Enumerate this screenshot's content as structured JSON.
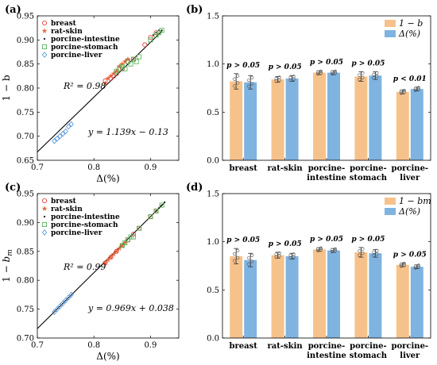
{
  "colors": {
    "breast": "#e03030",
    "rat_skin": "#e8663a",
    "porcine_intestine": "#111111",
    "porcine_stomach": "#4caf50",
    "porcine_liver": "#4a90d9",
    "bar_orange": "#f6c28b",
    "bar_blue": "#7fb3e0",
    "fit_line": "#000000",
    "errorbar": "#333333",
    "point_edge": "#555555"
  },
  "chart_data": [
    {
      "id": "a",
      "type": "scatter",
      "panel_letter": "(a)",
      "xlabel": "Δ(%)",
      "ylabel": "1 − b",
      "ylabel_symbol": "b",
      "xlim": [
        0.7,
        0.95
      ],
      "ylim": [
        0.65,
        0.95
      ],
      "xticks": [
        0.7,
        0.8,
        0.9
      ],
      "yticks": [
        0.65,
        0.7,
        0.75,
        0.8,
        0.85,
        0.9,
        0.95
      ],
      "xtick_labels": [
        "0.7",
        "0.8",
        "0.9"
      ],
      "ytick_labels": [
        "0.65",
        "0.70",
        "0.75",
        "0.80",
        "0.85",
        "0.90",
        "0.95"
      ],
      "legend_position": "top-left",
      "r2_text": "R² = 0.98",
      "r2_value": 0.98,
      "eq_text": "y = 1.139x − 0.13",
      "fit": {
        "slope": 1.139,
        "intercept": -0.13,
        "x_range": [
          0.68,
          0.92
        ]
      },
      "series": [
        {
          "name": "breast",
          "marker": "circle",
          "color_key": "breast",
          "points": [
            [
              0.82,
              0.815
            ],
            [
              0.83,
              0.82
            ],
            [
              0.835,
              0.825
            ],
            [
              0.84,
              0.83
            ],
            [
              0.85,
              0.84
            ],
            [
              0.86,
              0.855
            ],
            [
              0.87,
              0.86
            ],
            [
              0.89,
              0.89
            ],
            [
              0.9,
              0.905
            ],
            [
              0.91,
              0.915
            ]
          ]
        },
        {
          "name": "rat-skin",
          "marker": "star",
          "color_key": "rat_skin",
          "points": [
            [
              0.82,
              0.81
            ],
            [
              0.825,
              0.82
            ],
            [
              0.83,
              0.825
            ],
            [
              0.835,
              0.83
            ],
            [
              0.84,
              0.835
            ],
            [
              0.845,
              0.845
            ],
            [
              0.85,
              0.85
            ],
            [
              0.855,
              0.855
            ],
            [
              0.86,
              0.86
            ]
          ]
        },
        {
          "name": "porcine-intestine",
          "marker": "dot",
          "color_key": "porcine_intestine",
          "points": [
            [
              0.905,
              0.91
            ],
            [
              0.91,
              0.915
            ],
            [
              0.915,
              0.92
            ],
            [
              0.92,
              0.92
            ],
            [
              0.918,
              0.916
            ]
          ]
        },
        {
          "name": "porcine-stomach",
          "marker": "square",
          "color_key": "porcine_stomach",
          "points": [
            [
              0.84,
              0.835
            ],
            [
              0.845,
              0.84
            ],
            [
              0.85,
              0.845
            ],
            [
              0.855,
              0.84
            ],
            [
              0.86,
              0.855
            ],
            [
              0.865,
              0.85
            ],
            [
              0.87,
              0.86
            ],
            [
              0.875,
              0.855
            ],
            [
              0.88,
              0.865
            ],
            [
              0.9,
              0.9
            ],
            [
              0.91,
              0.91
            ],
            [
              0.915,
              0.915
            ],
            [
              0.92,
              0.92
            ]
          ]
        },
        {
          "name": "porcine-liver",
          "marker": "diamond",
          "color_key": "porcine_liver",
          "points": [
            [
              0.73,
              0.69
            ],
            [
              0.735,
              0.695
            ],
            [
              0.74,
              0.7
            ],
            [
              0.745,
              0.705
            ],
            [
              0.75,
              0.71
            ],
            [
              0.755,
              0.72
            ],
            [
              0.76,
              0.725
            ]
          ]
        }
      ]
    },
    {
      "id": "b",
      "type": "bar",
      "panel_letter": "(b)",
      "categories": [
        [
          "breast"
        ],
        [
          "rat-skin"
        ],
        [
          "porcine-",
          "intestine"
        ],
        [
          "porcine-",
          "stomach"
        ],
        [
          "porcine-",
          "liver"
        ]
      ],
      "ylim": [
        0,
        1.5
      ],
      "yticks": [
        0,
        0.5,
        1.0,
        1.5
      ],
      "ytick_labels": [
        "0.0",
        "0.5",
        "1.0",
        "1.5"
      ],
      "legend_position": "top-right",
      "series": [
        {
          "name": "1 − b",
          "color_key": "bar_orange",
          "values": [
            0.82,
            0.84,
            0.91,
            0.87,
            0.71
          ],
          "errors": [
            0.08,
            0.03,
            0.02,
            0.05,
            0.02
          ]
        },
        {
          "name": "Δ(%)",
          "color_key": "bar_blue",
          "values": [
            0.81,
            0.85,
            0.91,
            0.88,
            0.74
          ],
          "errors": [
            0.07,
            0.03,
            0.02,
            0.04,
            0.02
          ]
        }
      ],
      "pvalues": [
        "p > 0.05",
        "p > 0.05",
        "p > 0.05",
        "p > 0.05",
        "p < 0.01"
      ]
    },
    {
      "id": "c",
      "type": "scatter",
      "panel_letter": "(c)",
      "xlabel": "Δ(%)",
      "ylabel": "1 − bm",
      "ylabel_symbol": "b",
      "ylabel_subscript": "m",
      "xlim": [
        0.7,
        0.95
      ],
      "ylim": [
        0.7,
        0.95
      ],
      "xticks": [
        0.7,
        0.8,
        0.9
      ],
      "yticks": [
        0.7,
        0.75,
        0.8,
        0.85,
        0.9,
        0.95
      ],
      "xtick_labels": [
        "0.7",
        "0.8",
        "0.9"
      ],
      "ytick_labels": [
        "0.70",
        "0.75",
        "0.80",
        "0.85",
        "0.90",
        "0.95"
      ],
      "legend_position": "top-left",
      "r2_text": "R² = 0.99",
      "r2_value": 0.99,
      "eq_text": "y = 0.969x + 0.038",
      "fit": {
        "slope": 0.969,
        "intercept": 0.038,
        "x_range": [
          0.7,
          0.925
        ]
      },
      "series": [
        {
          "name": "breast",
          "marker": "circle",
          "color_key": "breast",
          "points": [
            [
              0.82,
              0.83
            ],
            [
              0.83,
              0.84
            ],
            [
              0.84,
              0.85
            ],
            [
              0.85,
              0.86
            ],
            [
              0.86,
              0.87
            ],
            [
              0.87,
              0.88
            ],
            [
              0.88,
              0.89
            ],
            [
              0.9,
              0.91
            ],
            [
              0.91,
              0.92
            ]
          ]
        },
        {
          "name": "rat-skin",
          "marker": "star",
          "color_key": "rat_skin",
          "points": [
            [
              0.82,
              0.83
            ],
            [
              0.825,
              0.835
            ],
            [
              0.83,
              0.84
            ],
            [
              0.835,
              0.845
            ],
            [
              0.84,
              0.85
            ],
            [
              0.845,
              0.855
            ],
            [
              0.85,
              0.86
            ],
            [
              0.855,
              0.865
            ]
          ]
        },
        {
          "name": "porcine-intestine",
          "marker": "dot",
          "color_key": "porcine_intestine",
          "points": [
            [
              0.91,
              0.92
            ],
            [
              0.915,
              0.925
            ],
            [
              0.92,
              0.93
            ],
            [
              0.925,
              0.935
            ],
            [
              0.918,
              0.928
            ]
          ]
        },
        {
          "name": "porcine-stomach",
          "marker": "square",
          "color_key": "porcine_stomach",
          "points": [
            [
              0.85,
              0.86
            ],
            [
              0.855,
              0.865
            ],
            [
              0.86,
              0.87
            ],
            [
              0.865,
              0.875
            ],
            [
              0.87,
              0.875
            ],
            [
              0.88,
              0.89
            ],
            [
              0.9,
              0.91
            ],
            [
              0.91,
              0.92
            ],
            [
              0.92,
              0.93
            ]
          ]
        },
        {
          "name": "porcine-liver",
          "marker": "diamond",
          "color_key": "porcine_liver",
          "points": [
            [
              0.73,
              0.745
            ],
            [
              0.735,
              0.75
            ],
            [
              0.74,
              0.755
            ],
            [
              0.745,
              0.76
            ],
            [
              0.75,
              0.765
            ],
            [
              0.755,
              0.77
            ],
            [
              0.76,
              0.775
            ]
          ]
        }
      ]
    },
    {
      "id": "d",
      "type": "bar",
      "panel_letter": "(d)",
      "categories": [
        [
          "breast"
        ],
        [
          "rat-skin"
        ],
        [
          "porcine-",
          "intestine"
        ],
        [
          "porcine-",
          "stomach"
        ],
        [
          "porcine-",
          "liver"
        ]
      ],
      "ylim": [
        0,
        1.5
      ],
      "yticks": [
        0,
        0.5,
        1.0,
        1.5
      ],
      "ytick_labels": [
        "0.0",
        "0.5",
        "1.0",
        "1.5"
      ],
      "legend_position": "top-right",
      "series": [
        {
          "name": "1 − bm",
          "color_key": "bar_orange",
          "values": [
            0.85,
            0.86,
            0.92,
            0.89,
            0.76
          ],
          "errors": [
            0.08,
            0.03,
            0.02,
            0.05,
            0.02
          ]
        },
        {
          "name": "Δ(%)",
          "color_key": "bar_blue",
          "values": [
            0.81,
            0.85,
            0.91,
            0.88,
            0.74
          ],
          "errors": [
            0.07,
            0.03,
            0.02,
            0.04,
            0.02
          ]
        }
      ],
      "pvalues": [
        "p > 0.05",
        "p > 0.05",
        "p > 0.05",
        "p > 0.05",
        "p > 0.05"
      ]
    }
  ]
}
